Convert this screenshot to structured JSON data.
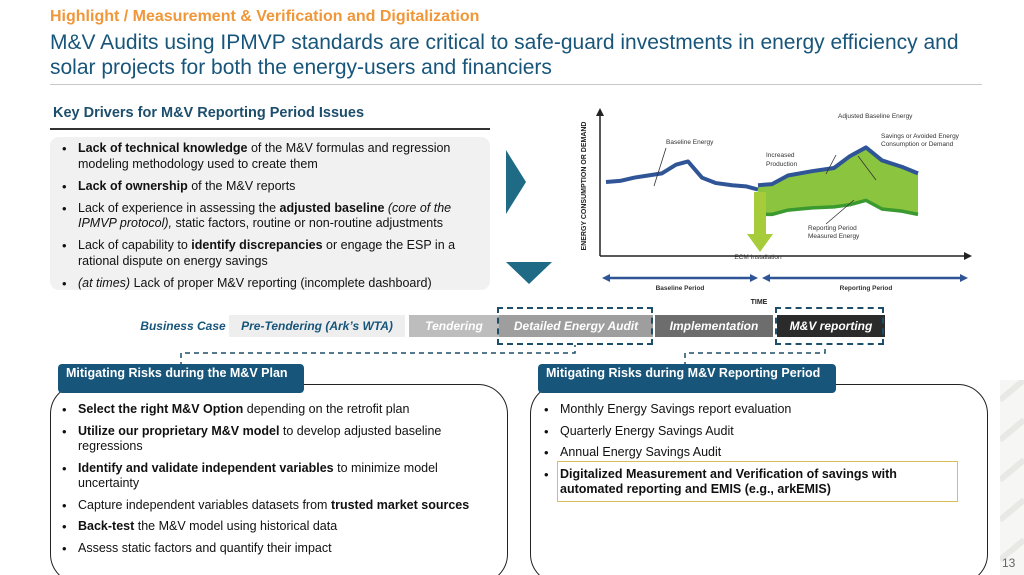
{
  "header": {
    "kicker": "Highlight / Measurement & Verification and Digitalization",
    "headline": "M&V Audits using IPMVP standards are critical to safe-guard investments in energy efficiency and solar projects for both the energy-users and financiers"
  },
  "drivers": {
    "title": "Key Drivers for M&V Reporting Period Issues",
    "items": [
      {
        "parts": [
          {
            "t": "Lack of technical knowledge",
            "s": "b"
          },
          {
            "t": " of the M&V formulas and regression modeling methodology used to create them",
            "s": ""
          }
        ]
      },
      {
        "parts": [
          {
            "t": "Lack of ownership",
            "s": "b"
          },
          {
            "t": " of the M&V reports",
            "s": ""
          }
        ]
      },
      {
        "parts": [
          {
            "t": "Lack of experience in assessing the ",
            "s": ""
          },
          {
            "t": "adjusted baseline",
            "s": "b"
          },
          {
            "t": " (core of the IPMVP protocol),",
            "s": "i"
          },
          {
            "t": " static factors, routine or non-routine adjustments",
            "s": ""
          }
        ]
      },
      {
        "parts": [
          {
            "t": "Lack of capability to ",
            "s": ""
          },
          {
            "t": "identify discrepancies",
            "s": "b"
          },
          {
            "t": " or engage the ESP in a rational dispute on energy savings",
            "s": ""
          }
        ]
      },
      {
        "parts": [
          {
            "t": "(at times)",
            "s": "i"
          },
          {
            "t": " Lack of proper M&V reporting (incomplete dashboard)",
            "s": ""
          }
        ]
      }
    ]
  },
  "chart_data": {
    "type": "line",
    "ylabel": "ENERGY CONSUMPTION OR DEMAND",
    "xlabel": "TIME",
    "series": [
      {
        "name": "Baseline Energy",
        "values": [
          50,
          51,
          54,
          56,
          58,
          66,
          69,
          54,
          49,
          47,
          46,
          43
        ]
      },
      {
        "name": "Adjusted Baseline Energy",
        "values": [
          47,
          48,
          56,
          60,
          63,
          74,
          82,
          70,
          64,
          58
        ]
      },
      {
        "name": "Reporting Period Measured Energy",
        "values": [
          20,
          20,
          24,
          26,
          27,
          29,
          33,
          25,
          23,
          20
        ]
      }
    ],
    "annotations": {
      "baseline": "Baseline Energy",
      "adjusted": "Adjusted Baseline Energy",
      "savings_1": "Savings or Avoided Energy",
      "savings_2": "Consumption or Demand",
      "increased_1": "Increased",
      "increased_2": "Production",
      "measured_1": "Reporting Period",
      "measured_2": "Measured Energy",
      "ecm": "ECM Installation",
      "baseline_period": "Baseline Period",
      "reporting_period": "Reporting Period"
    },
    "colors": {
      "baseline": "#2f5597",
      "reporting": "#3a9a2f",
      "savings_fill": "#8bc53f",
      "ecm_arrow": "#a6cc3c",
      "period_arrow": "#2f5597"
    }
  },
  "phases": [
    {
      "label": "Business Case",
      "bg": "#ffffff",
      "fg": "#17557a"
    },
    {
      "label": "Pre-Tendering (Ark’s WTA)",
      "bg": "#eeeeee",
      "fg": "#17557a"
    },
    {
      "label": "Tendering",
      "bg": "#bdbdbd",
      "fg": "#ffffff"
    },
    {
      "label": "Detailed Energy Audit",
      "bg": "#9e9e9e",
      "fg": "#ffffff"
    },
    {
      "label": "Implementation",
      "bg": "#6d6d6d",
      "fg": "#ffffff"
    },
    {
      "label": "M&V reporting",
      "bg": "#2b2b2b",
      "fg": "#ffffff"
    }
  ],
  "plan": {
    "title": "Mitigating Risks during the M&V Plan",
    "items": [
      {
        "parts": [
          {
            "t": "Select the right M&V Option",
            "s": "b"
          },
          {
            "t": " depending on the retrofit plan",
            "s": ""
          }
        ]
      },
      {
        "parts": [
          {
            "t": "Utilize our proprietary M&V model",
            "s": "b"
          },
          {
            "t": " to develop adjusted baseline regressions",
            "s": ""
          }
        ]
      },
      {
        "parts": [
          {
            "t": "Identify and validate independent variables",
            "s": "b"
          },
          {
            "t": " to minimize model uncertainty",
            "s": ""
          }
        ]
      },
      {
        "parts": [
          {
            "t": "Capture independent variables datasets from ",
            "s": ""
          },
          {
            "t": "trusted market sources",
            "s": "b"
          }
        ]
      },
      {
        "parts": [
          {
            "t": "Back-test",
            "s": "b"
          },
          {
            "t": " the M&V model using historical data",
            "s": ""
          }
        ]
      },
      {
        "parts": [
          {
            "t": "Assess static factors and quantify their impact",
            "s": ""
          }
        ]
      }
    ]
  },
  "reporting": {
    "title": "Mitigating Risks during M&V Reporting Period",
    "items": [
      {
        "parts": [
          {
            "t": "Monthly Energy Savings report evaluation",
            "s": ""
          }
        ]
      },
      {
        "parts": [
          {
            "t": "Quarterly Energy Savings Audit",
            "s": ""
          }
        ]
      },
      {
        "parts": [
          {
            "t": "Annual Energy Savings Audit",
            "s": ""
          }
        ]
      },
      {
        "parts": [
          {
            "t": "Digitalized Measurement and Verification of savings with automated reporting and EMIS (e.g., arkEMIS)",
            "s": "b"
          }
        ]
      }
    ]
  },
  "page_number": "13",
  "colors": {
    "accent_orange": "#f0973a",
    "brand_blue": "#17557a",
    "arrow_teal": "#1f6b86"
  }
}
